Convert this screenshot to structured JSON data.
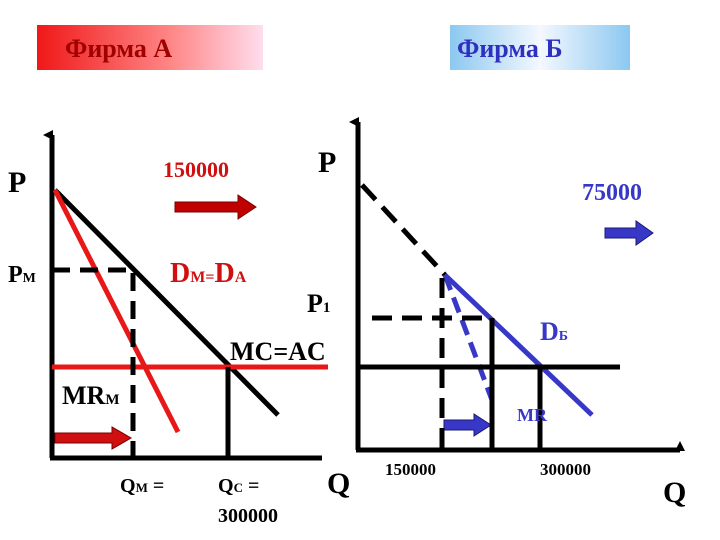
{
  "firm_a": {
    "title": "Фирма А",
    "price_axis": "P",
    "pm": "P",
    "pm_sub": "М",
    "shift_value": "150000",
    "demand": "D",
    "demand_sub": "М=",
    "demand2": "D",
    "demand2_sub": "А",
    "cost_label": "MC=AC",
    "mr": "MR",
    "mr_sub": "М",
    "qm": "Q",
    "qm_sub": "М",
    "qm_eq": " =",
    "qc": "Q",
    "qc_sub": "С",
    "qc_eq": " =",
    "qc_value": "300000",
    "quantity_axis": "Q"
  },
  "firm_b": {
    "title": "Фирма Б",
    "price_axis": "P",
    "p1": "P",
    "p1_sub": "1",
    "shift_value": "75000",
    "demand": "D",
    "demand_sub": "Б",
    "mr": "MR",
    "q1": "150000",
    "q2": "300000",
    "quantity_axis": "Q"
  }
}
